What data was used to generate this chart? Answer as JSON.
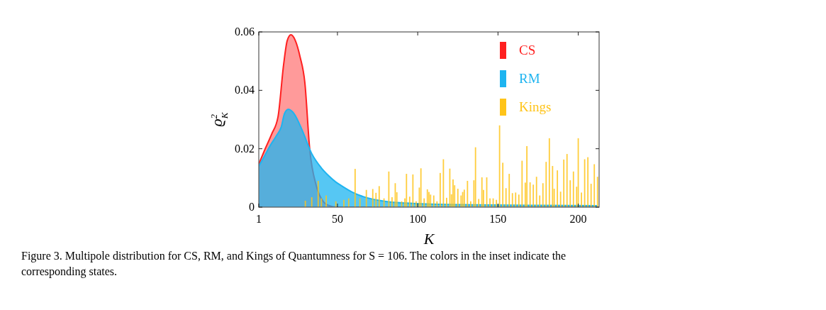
{
  "chart_data": {
    "type": "bar",
    "xlabel": "K",
    "ylabel": "ϱ$_{K}$$^{2}$",
    "xlim": [
      1,
      213
    ],
    "ylim": [
      0,
      0.06
    ],
    "xticks": [
      1,
      50,
      100,
      150,
      200
    ],
    "yticks": [
      0,
      0.02,
      0.04,
      0.06
    ],
    "grid": false,
    "legend": "top right",
    "annotations": [
      "Figure 3. Multipole distribution for CS, RM, and Kings of Quantumness for S = 106. The colors in the inset indicate the corresponding states."
    ],
    "series": [
      {
        "name": "CS",
        "type": "area",
        "color": "#ff2020",
        "x": [
          1,
          5,
          9,
          13,
          16.5,
          18.7,
          21,
          23.8,
          26.7,
          29.7,
          32.7,
          37,
          41.5,
          45,
          49,
          60,
          80,
          120,
          212
        ],
        "values": [
          0.0147,
          0.02,
          0.025,
          0.031,
          0.049,
          0.057,
          0.059,
          0.057,
          0.0515,
          0.0426,
          0.02,
          0.007,
          0.0017,
          0.0005,
          0,
          0,
          0,
          0,
          0
        ]
      },
      {
        "name": "RM",
        "type": "area",
        "color": "#1eb4f0",
        "x": [
          1,
          5,
          8,
          12,
          15,
          17,
          19.4,
          23,
          28,
          34,
          40,
          45,
          49,
          52,
          59,
          66,
          81,
          106,
          135,
          170,
          212
        ],
        "values": [
          0.014,
          0.018,
          0.021,
          0.0245,
          0.0275,
          0.032,
          0.0335,
          0.032,
          0.0264,
          0.0183,
          0.0134,
          0.0105,
          0.0086,
          0.0075,
          0.0052,
          0.0036,
          0.0019,
          0.0011,
          0.0008,
          0.0006,
          0.0005
        ]
      },
      {
        "name": "Kings",
        "type": "bar",
        "color": "#ffc41a",
        "x": [
          30,
          34,
          38,
          40,
          43,
          49,
          54,
          57,
          61,
          64,
          68,
          72,
          74,
          76,
          79,
          82,
          84,
          86,
          87,
          90,
          92,
          93,
          95,
          97,
          99,
          101,
          102,
          104,
          106,
          107,
          108,
          110,
          112,
          114,
          116,
          118,
          120,
          121,
          122,
          123,
          125,
          127,
          128,
          129,
          131,
          133,
          135,
          136,
          138,
          140,
          141,
          143,
          145,
          147,
          149,
          151,
          153,
          155,
          157,
          159,
          161,
          163,
          165,
          167,
          168,
          170,
          172,
          174,
          176,
          178,
          180,
          182,
          184,
          185,
          187,
          189,
          191,
          193,
          195,
          197,
          199,
          200,
          202,
          204,
          206,
          208,
          210,
          212
        ],
        "values": [
          0.0022,
          0.0034,
          0.009,
          0.003,
          0.004,
          0.002,
          0.0025,
          0.003,
          0.0131,
          0.003,
          0.0059,
          0.0062,
          0.0049,
          0.0072,
          0.003,
          0.0122,
          0.0034,
          0.0082,
          0.0051,
          0.002,
          0.003,
          0.0114,
          0.0036,
          0.0112,
          0.002,
          0.0067,
          0.0133,
          0.003,
          0.0061,
          0.0052,
          0.0043,
          0.004,
          0.002,
          0.0117,
          0.0164,
          0.0032,
          0.0132,
          0.0044,
          0.0095,
          0.0075,
          0.0063,
          0.004,
          0.0052,
          0.006,
          0.009,
          0.002,
          0.0092,
          0.0205,
          0.0028,
          0.0102,
          0.0059,
          0.0102,
          0.003,
          0.003,
          0.0025,
          0.028,
          0.0152,
          0.0065,
          0.0114,
          0.0048,
          0.005,
          0.0043,
          0.0159,
          0.0084,
          0.0209,
          0.0085,
          0.0077,
          0.0104,
          0.004,
          0.0082,
          0.0155,
          0.0236,
          0.0141,
          0.0063,
          0.0126,
          0.0053,
          0.0163,
          0.0182,
          0.0092,
          0.0122,
          0.007,
          0.0236,
          0.005,
          0.0164,
          0.0171,
          0.008,
          0.0147,
          0.0104
        ]
      }
    ]
  }
}
